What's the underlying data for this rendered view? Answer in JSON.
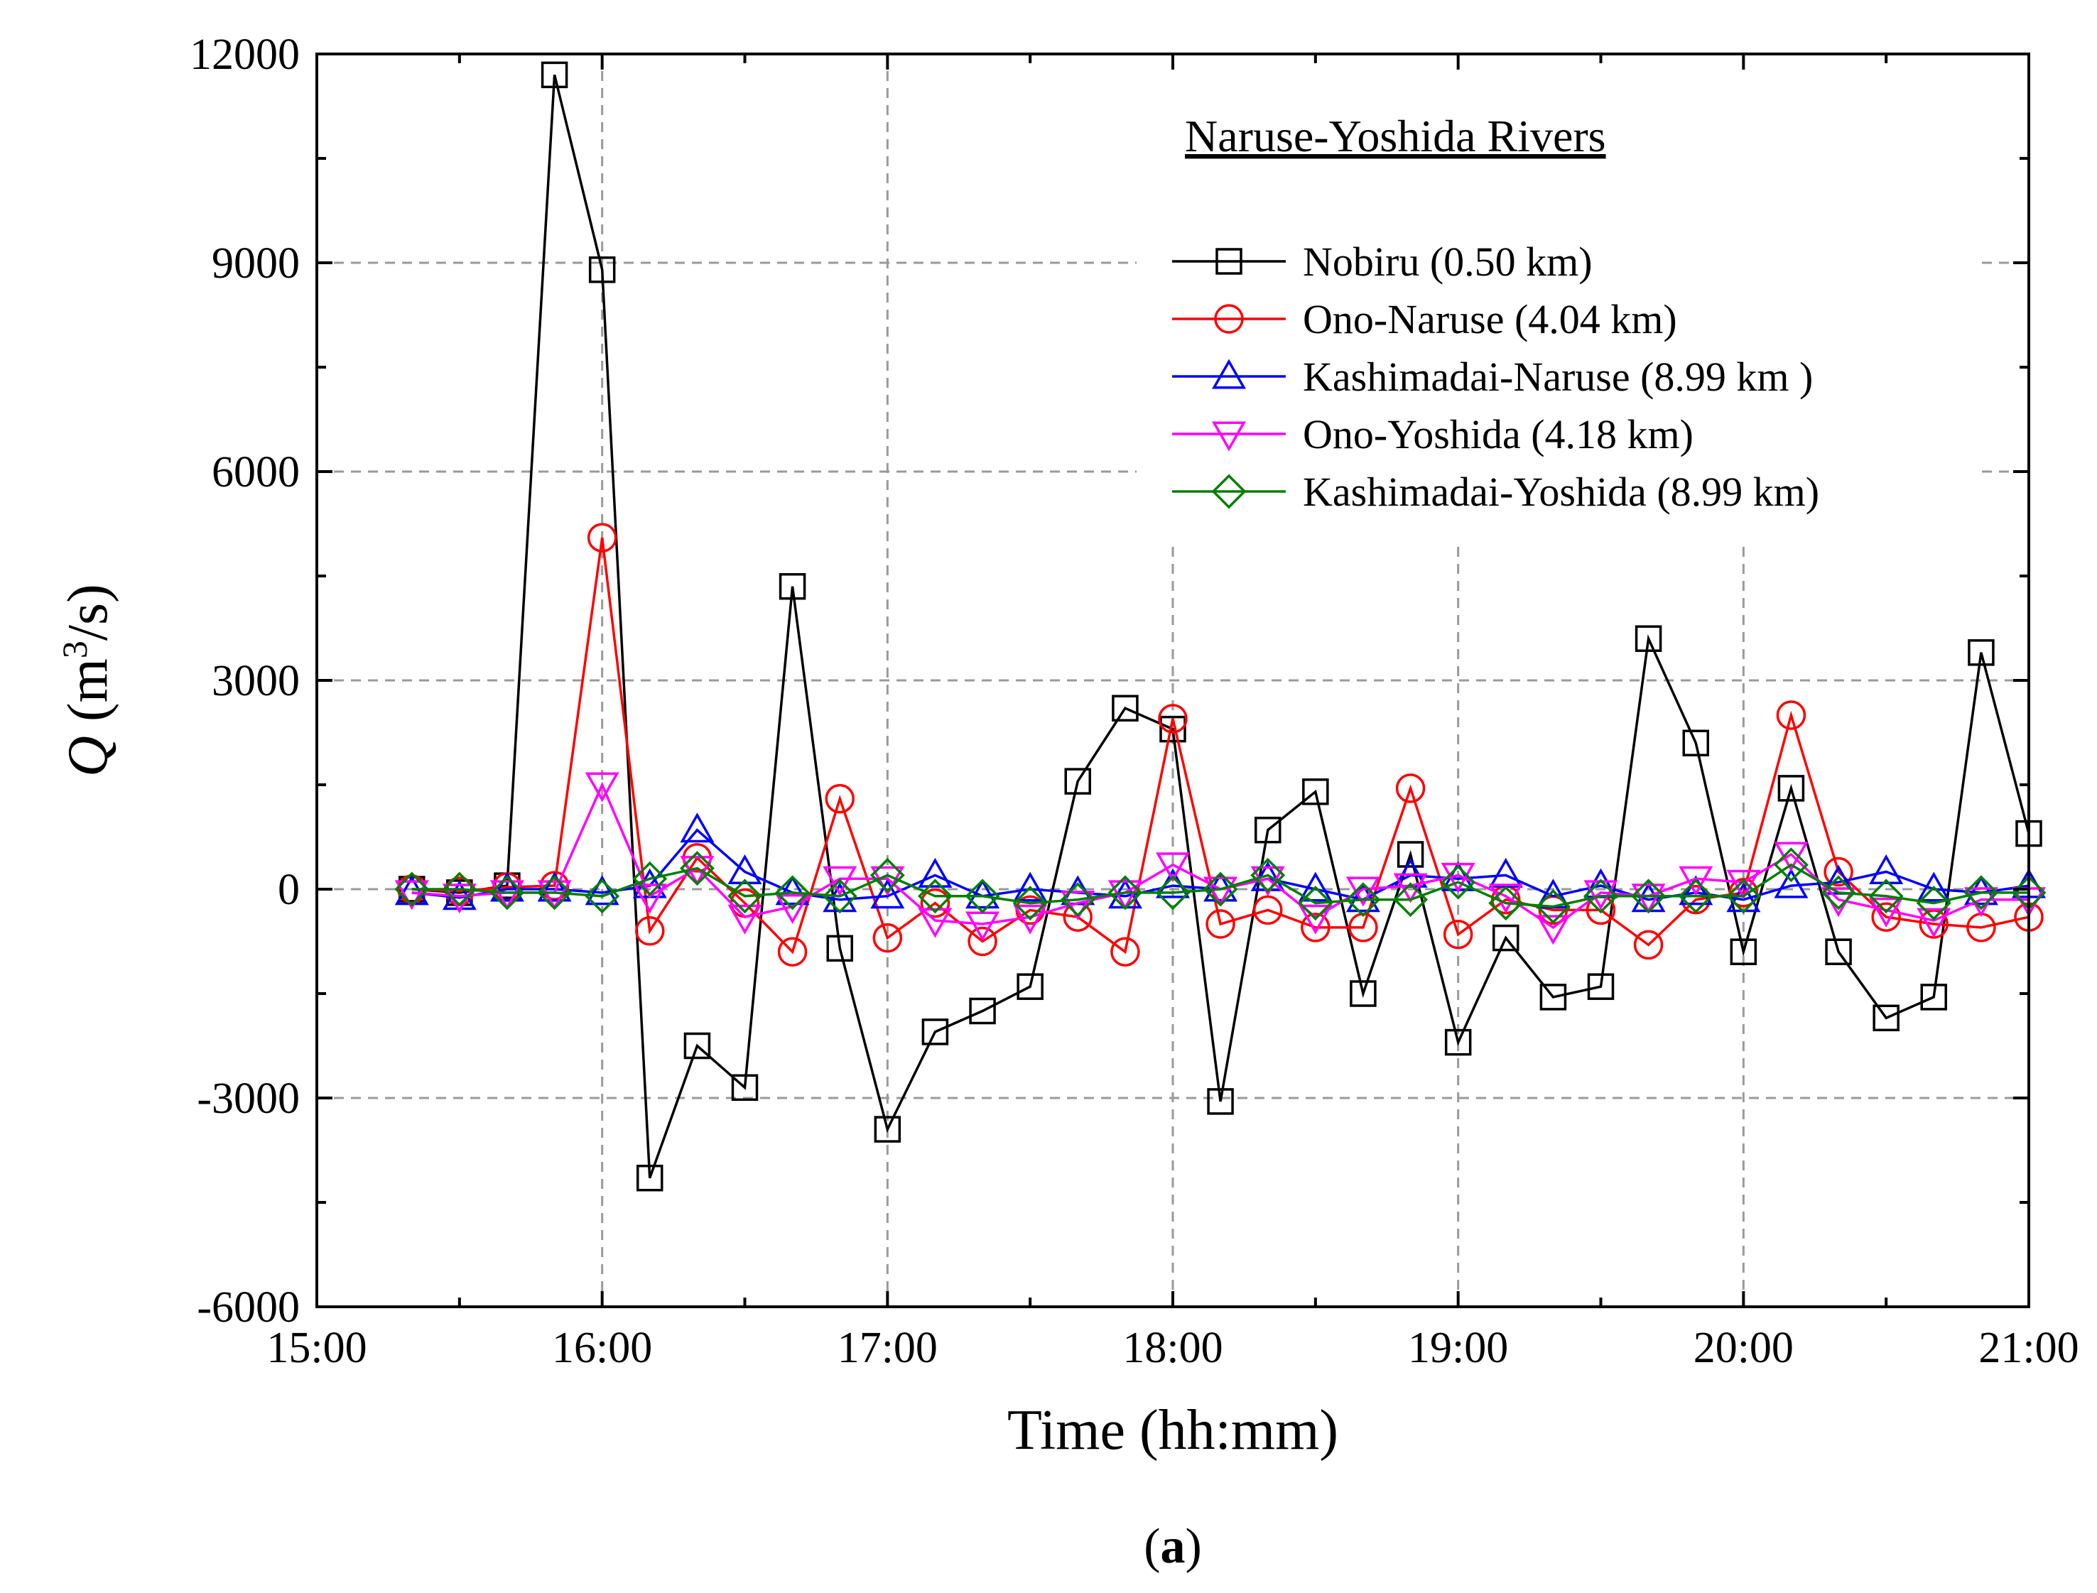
{
  "chart_data": {
    "type": "line",
    "title": "Naruse-Yoshida Rivers",
    "xlabel": "Time (hh:mm)",
    "ylabel": {
      "symbol": "Q",
      "unit_open": " (m",
      "unit_sup": "3",
      "unit_close": "/s)"
    },
    "caption": {
      "open": "(",
      "letter": "a",
      "close": ")"
    },
    "xlim": [
      15.0,
      21.0
    ],
    "ylim": [
      -6000,
      12000
    ],
    "x_ticks": [
      {
        "value": 15,
        "label": "15:00"
      },
      {
        "value": 16,
        "label": "16:00"
      },
      {
        "value": 17,
        "label": "17:00"
      },
      {
        "value": 18,
        "label": "18:00"
      },
      {
        "value": 19,
        "label": "19:00"
      },
      {
        "value": 20,
        "label": "20:00"
      },
      {
        "value": 21,
        "label": "21:00"
      }
    ],
    "y_ticks": [
      {
        "value": -6000,
        "label": "-6000"
      },
      {
        "value": -3000,
        "label": "-3000"
      },
      {
        "value": 0,
        "label": "0"
      },
      {
        "value": 3000,
        "label": "3000"
      },
      {
        "value": 6000,
        "label": "6000"
      },
      {
        "value": 9000,
        "label": "9000"
      },
      {
        "value": 12000,
        "label": "12000"
      }
    ],
    "grid": true,
    "legend_position": "top-right",
    "x": [
      15.333,
      15.5,
      15.667,
      15.833,
      16.0,
      16.167,
      16.333,
      16.5,
      16.667,
      16.833,
      17.0,
      17.167,
      17.333,
      17.5,
      17.667,
      17.833,
      18.0,
      18.167,
      18.333,
      18.5,
      18.667,
      18.833,
      19.0,
      19.167,
      19.333,
      19.5,
      19.667,
      19.833,
      20.0,
      20.167,
      20.333,
      20.5,
      20.667,
      20.833,
      21.0
    ],
    "series": [
      {
        "name": "Nobiru (0.50 km)",
        "color": "#000000",
        "marker": "square",
        "values": [
          0,
          -50,
          50,
          11700,
          8900,
          -4150,
          -2250,
          -2850,
          4350,
          -850,
          -3450,
          -2050,
          -1750,
          -1400,
          1550,
          2600,
          2300,
          -3050,
          850,
          1400,
          -1500,
          500,
          -2200,
          -700,
          -1550,
          -1400,
          3600,
          2100,
          -900,
          1450,
          -900,
          -1850,
          -1550,
          3400,
          800
        ]
      },
      {
        "name": "Ono-Naruse (4.04 km)",
        "color": "#ff0000",
        "marker": "circle",
        "values": [
          0,
          -30,
          30,
          50,
          5050,
          -600,
          450,
          -200,
          -900,
          1300,
          -700,
          -200,
          -750,
          -300,
          -400,
          -900,
          2450,
          -500,
          -300,
          -550,
          -550,
          1450,
          -650,
          -150,
          -300,
          -300,
          -800,
          -150,
          -50,
          2500,
          250,
          -400,
          -500,
          -550,
          -400
        ]
      },
      {
        "name": "Kashimadai-Naruse (8.99 km )",
        "color": "#0000ff",
        "marker": "triangle-up",
        "values": [
          -50,
          -120,
          0,
          0,
          -50,
          50,
          850,
          250,
          -50,
          -150,
          -100,
          200,
          -100,
          0,
          -50,
          -100,
          50,
          0,
          150,
          0,
          -150,
          200,
          150,
          200,
          -100,
          50,
          -150,
          -50,
          -150,
          50,
          100,
          250,
          0,
          -50,
          50
        ]
      },
      {
        "name": "Ono-Yoshida (4.18 km)",
        "color": "#ff00ff",
        "marker": "triangle-down",
        "values": [
          -50,
          -100,
          -50,
          -50,
          1500,
          -100,
          300,
          -400,
          -250,
          150,
          150,
          -450,
          -500,
          -400,
          -200,
          -50,
          350,
          0,
          150,
          -400,
          0,
          50,
          200,
          -100,
          -550,
          -50,
          -100,
          150,
          100,
          500,
          -150,
          -300,
          -450,
          -150,
          -150
        ]
      },
      {
        "name": "Kashimadai-Yoshida (8.99 km)",
        "color": "#008000",
        "marker": "diamond",
        "values": [
          0,
          0,
          -50,
          -50,
          -100,
          150,
          300,
          -100,
          -50,
          -100,
          200,
          -100,
          -100,
          -200,
          -150,
          -50,
          -50,
          0,
          200,
          -200,
          -150,
          -150,
          100,
          -200,
          -250,
          -100,
          -100,
          -100,
          -100,
          350,
          -50,
          -100,
          -200,
          -50,
          -50
        ]
      }
    ]
  }
}
